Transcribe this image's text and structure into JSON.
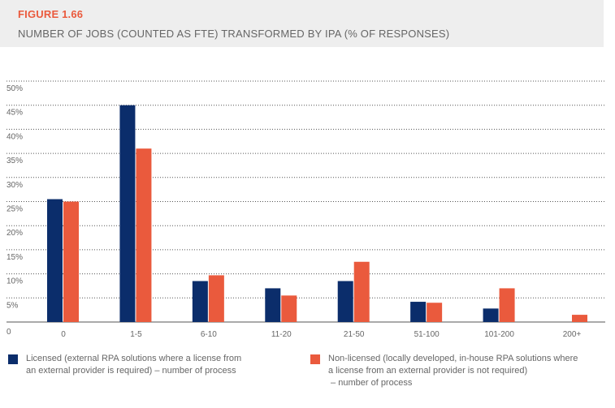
{
  "figure": {
    "label": "FIGURE 1.66",
    "title": "NUMBER OF JOBS (COUNTED AS FTE) TRANSFORMED BY IPA (% OF RESPONSES)"
  },
  "legend": {
    "licensed": "Licensed (external RPA solutions where a license from\nan external provider is required) – number of process",
    "non_licensed": "Non-licensed (locally developed, in-house RPA solutions where\na license from an external provider is not required)\n – number of process"
  },
  "colors": {
    "licensed": "#0b2d6b",
    "non_licensed": "#ea5a3d",
    "grid": "#555555",
    "text": "#666666"
  },
  "chart_data": {
    "type": "bar",
    "categories": [
      "0",
      "1-5",
      "6-10",
      "11-20",
      "21-50",
      "51-100",
      "101-200",
      "200+"
    ],
    "series": [
      {
        "name": "Licensed (external RPA solutions where a license from an external provider is required) – number of process",
        "values": [
          25.5,
          45,
          8.5,
          7,
          8.5,
          4.2,
          2.8,
          0
        ]
      },
      {
        "name": "Non-licensed (locally developed, in-house RPA solutions where a license from an external provider is not required) – number of process",
        "values": [
          25,
          36,
          9.7,
          5.5,
          12.5,
          4,
          7,
          1.5
        ]
      }
    ],
    "yticks": [
      "0",
      "5%",
      "10%",
      "15%",
      "20%",
      "25%",
      "30%",
      "35%",
      "40%",
      "45%",
      "50%"
    ],
    "ylim": [
      0,
      50
    ],
    "grid": true,
    "legend_position": "bottom"
  }
}
